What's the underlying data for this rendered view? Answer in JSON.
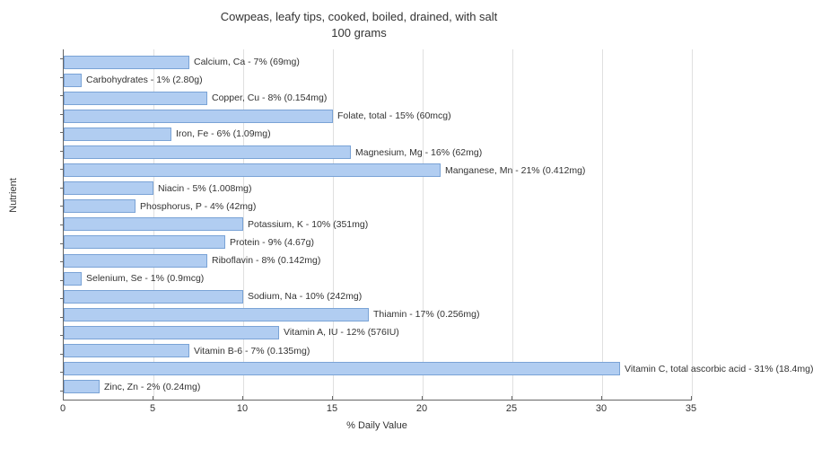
{
  "chart": {
    "type": "bar-horizontal",
    "title_line1": "Cowpeas, leafy tips, cooked, boiled, drained, with salt",
    "title_line2": "100 grams",
    "title_fontsize": 13,
    "xlabel": "% Daily Value",
    "ylabel": "Nutrient",
    "label_fontsize": 11,
    "xlim": [
      0,
      35
    ],
    "xtick_step": 5,
    "xticks": [
      0,
      5,
      10,
      15,
      20,
      25,
      30,
      35
    ],
    "background_color": "#ffffff",
    "grid_color": "#e0e0e0",
    "bar_fill": "#b1cdf1",
    "bar_border": "#7aa3d6",
    "bar_label_fontsize": 10.5,
    "data": [
      {
        "label": "Calcium, Ca - 7% (69mg)",
        "value": 7
      },
      {
        "label": "Carbohydrates - 1% (2.80g)",
        "value": 1
      },
      {
        "label": "Copper, Cu - 8% (0.154mg)",
        "value": 8
      },
      {
        "label": "Folate, total - 15% (60mcg)",
        "value": 15
      },
      {
        "label": "Iron, Fe - 6% (1.09mg)",
        "value": 6
      },
      {
        "label": "Magnesium, Mg - 16% (62mg)",
        "value": 16
      },
      {
        "label": "Manganese, Mn - 21% (0.412mg)",
        "value": 21
      },
      {
        "label": "Niacin - 5% (1.008mg)",
        "value": 5
      },
      {
        "label": "Phosphorus, P - 4% (42mg)",
        "value": 4
      },
      {
        "label": "Potassium, K - 10% (351mg)",
        "value": 10
      },
      {
        "label": "Protein - 9% (4.67g)",
        "value": 9
      },
      {
        "label": "Riboflavin - 8% (0.142mg)",
        "value": 8
      },
      {
        "label": "Selenium, Se - 1% (0.9mcg)",
        "value": 1
      },
      {
        "label": "Sodium, Na - 10% (242mg)",
        "value": 10
      },
      {
        "label": "Thiamin - 17% (0.256mg)",
        "value": 17
      },
      {
        "label": "Vitamin A, IU - 12% (576IU)",
        "value": 12
      },
      {
        "label": "Vitamin B-6 - 7% (0.135mg)",
        "value": 7
      },
      {
        "label": "Vitamin C, total ascorbic acid - 31% (18.4mg)",
        "value": 31
      },
      {
        "label": "Zinc, Zn - 2% (0.24mg)",
        "value": 2
      }
    ]
  }
}
